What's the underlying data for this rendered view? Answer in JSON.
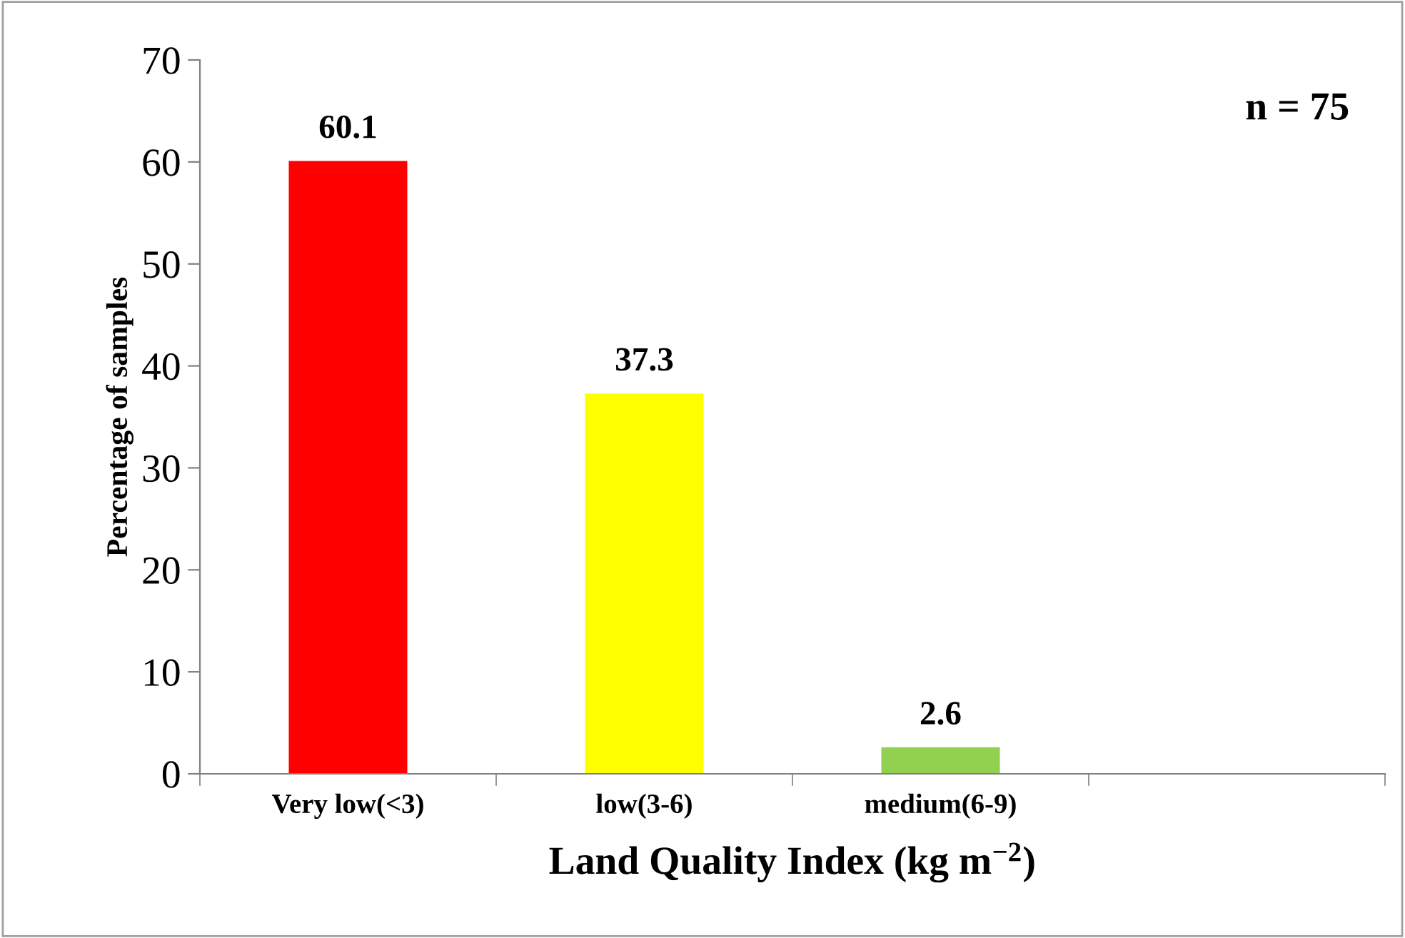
{
  "chart_data": {
    "type": "bar",
    "xlabel": "Land Quality Index (kg m$^{−2}$)",
    "ylabel": "Percentage of samples",
    "categories": [
      "Very low(<3)",
      "low(3-6)",
      "medium(6-9)",
      null
    ],
    "values": [
      60.1,
      37.3,
      2.6,
      null
    ],
    "colors": [
      "#ff0000",
      "#ffff00",
      "#92d050",
      "#92d050"
    ],
    "ylim": [
      0,
      70
    ],
    "yticks": [
      0,
      10,
      20,
      30,
      40,
      50,
      60,
      70
    ],
    "data_labels": true,
    "grid": false,
    "legend": false,
    "annotations": [
      "n = 75"
    ]
  }
}
